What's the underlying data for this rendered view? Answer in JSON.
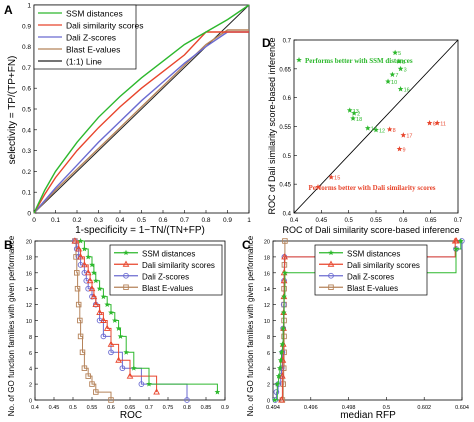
{
  "figure": {
    "panel_letters": [
      "A",
      "B",
      "C",
      "D"
    ]
  },
  "chart_data": [
    {
      "type": "line",
      "panel": "A",
      "xlabel": "1-specificity = 1−TN/(TN+FP)",
      "ylabel": "selectivity = TP/(TP+FN)",
      "xlim": [
        0,
        1
      ],
      "ylim": [
        0,
        1
      ],
      "xticks": [
        "0",
        "0.1",
        "0.2",
        "0.3",
        "0.4",
        "0.5",
        "0.6",
        "0.7",
        "0.8",
        "0.9",
        "1"
      ],
      "yticks": [
        "0",
        "0.1",
        "0.2",
        "0.3",
        "0.4",
        "0.5",
        "0.6",
        "0.7",
        "0.8",
        "0.9",
        "1"
      ],
      "grid": false,
      "legend_position": "top-left",
      "colors": {
        "ssm": "#2db82d",
        "dali_sim": "#e8452c",
        "dali_z": "#6b6bd1",
        "blast": "#b5835a",
        "diag": "#222222"
      },
      "series": [
        {
          "name": "SSM distances",
          "x": [
            0,
            0.05,
            0.1,
            0.2,
            0.3,
            0.4,
            0.5,
            0.6,
            0.7,
            0.8,
            0.9,
            1.0
          ],
          "y": [
            0,
            0.11,
            0.2,
            0.34,
            0.46,
            0.56,
            0.65,
            0.73,
            0.81,
            0.87,
            0.93,
            1.0
          ]
        },
        {
          "name": "Dali similarity scores",
          "x": [
            0,
            0.05,
            0.1,
            0.2,
            0.3,
            0.4,
            0.5,
            0.6,
            0.7,
            0.8,
            0.9,
            1.0
          ],
          "y": [
            0,
            0.09,
            0.17,
            0.3,
            0.41,
            0.51,
            0.6,
            0.68,
            0.76,
            0.87,
            0.87,
            0.87
          ]
        },
        {
          "name": "Dali Z-scores",
          "x": [
            0,
            0.1,
            0.2,
            0.3,
            0.4,
            0.5,
            0.6,
            0.7,
            0.8,
            0.9,
            1.0
          ],
          "y": [
            0,
            0.12,
            0.23,
            0.34,
            0.44,
            0.54,
            0.63,
            0.72,
            0.8,
            0.87,
            0.87
          ]
        },
        {
          "name": "Blast E-values",
          "x": [
            0,
            0.1,
            0.2,
            0.3,
            0.4,
            0.5,
            0.6,
            0.7,
            0.8,
            0.9,
            1.0
          ],
          "y": [
            0,
            0.11,
            0.21,
            0.31,
            0.41,
            0.51,
            0.61,
            0.71,
            0.81,
            0.88,
            0.88
          ]
        },
        {
          "name": "(1:1) Line",
          "x": [
            0,
            1
          ],
          "y": [
            0,
            1
          ]
        }
      ]
    },
    {
      "type": "line",
      "panel": "B",
      "xlabel": "ROC",
      "ylabel": "No. of GO function families with given performance",
      "xlim": [
        0.4,
        0.9
      ],
      "ylim": [
        0,
        20
      ],
      "xticks": [
        "0.4",
        "0.45",
        "0.5",
        "0.55",
        "0.6",
        "0.65",
        "0.7",
        "0.75",
        "0.8",
        "0.85",
        "0.9"
      ],
      "yticks": [
        "0",
        "2",
        "4",
        "6",
        "8",
        "10",
        "12",
        "14",
        "16",
        "18",
        "20"
      ],
      "legend_position": "top-right",
      "series": [
        {
          "name": "SSM distances",
          "marker": "star",
          "x": [
            0.52,
            0.53,
            0.54,
            0.55,
            0.555,
            0.56,
            0.57,
            0.58,
            0.59,
            0.6,
            0.61,
            0.62,
            0.625,
            0.64,
            0.66,
            0.7,
            0.88
          ],
          "y": [
            20,
            19,
            18,
            17,
            16,
            15,
            14,
            13,
            12,
            11,
            10,
            9,
            8,
            6,
            4,
            2,
            1
          ]
        },
        {
          "name": "Dali similarity scores",
          "marker": "triangle",
          "x": [
            0.505,
            0.515,
            0.52,
            0.53,
            0.54,
            0.545,
            0.55,
            0.555,
            0.56,
            0.57,
            0.58,
            0.59,
            0.6,
            0.62,
            0.65,
            0.72
          ],
          "y": [
            20,
            19,
            18,
            17,
            16,
            15,
            14,
            13,
            12,
            11,
            10,
            9,
            7,
            5,
            3,
            1
          ]
        },
        {
          "name": "Dali Z-scores",
          "marker": "circle",
          "x": [
            0.505,
            0.51,
            0.515,
            0.52,
            0.53,
            0.535,
            0.54,
            0.55,
            0.56,
            0.57,
            0.58,
            0.6,
            0.63,
            0.68,
            0.8
          ],
          "y": [
            20,
            19,
            18,
            17,
            16,
            15,
            14,
            13,
            12,
            10,
            8,
            6,
            4,
            2,
            0
          ]
        },
        {
          "name": "Blast E-values",
          "marker": "square",
          "x": [
            0.505,
            0.508,
            0.51,
            0.512,
            0.515,
            0.518,
            0.52,
            0.525,
            0.53,
            0.54,
            0.55,
            0.56,
            0.6
          ],
          "y": [
            20,
            18,
            16,
            14,
            12,
            10,
            8,
            6,
            4,
            3,
            2,
            1,
            0
          ]
        }
      ]
    },
    {
      "type": "line",
      "panel": "C",
      "xlabel": "median RFP",
      "ylabel": "No. of GO function families with given performance",
      "xlim": [
        0.4935,
        0.6045
      ],
      "ylim": [
        0,
        20
      ],
      "xticks": [
        "0.494",
        "0.496",
        "0.498",
        "0.5",
        "0.602",
        "0.604"
      ],
      "yticks": [
        "0",
        "2",
        "4",
        "6",
        "8",
        "10",
        "12",
        "14",
        "16",
        "18",
        "20"
      ],
      "legend_position": "top-left",
      "series": [
        {
          "name": "SSM distances",
          "marker": "star",
          "x": [
            0.4945,
            0.496,
            0.4968,
            0.4975,
            0.498,
            0.4985,
            0.499,
            0.4995,
            0.4998,
            0.5,
            0.5005,
            0.601,
            0.6038
          ],
          "y": [
            0,
            2,
            3,
            4,
            5,
            6,
            7,
            9,
            11,
            13,
            16,
            19,
            20
          ]
        },
        {
          "name": "Dali similarity scores",
          "marker": "triangle",
          "x": [
            0.4985,
            0.499,
            0.4993,
            0.4995,
            0.4997,
            0.4998,
            0.4999,
            0.5,
            0.5,
            0.5003,
            0.6005,
            0.6012
          ],
          "y": [
            0,
            3,
            5,
            7,
            9,
            11,
            13,
            15,
            16,
            18,
            20,
            20
          ]
        },
        {
          "name": "Dali Z-scores",
          "marker": "circle",
          "x": [
            0.4948,
            0.4955,
            0.4965,
            0.498,
            0.4985,
            0.499,
            0.4995,
            0.4998,
            0.5,
            0.5002,
            0.601,
            0.6044
          ],
          "y": [
            0,
            1,
            2,
            3,
            4,
            6,
            9,
            12,
            15,
            18,
            19,
            20
          ]
        },
        {
          "name": "Blast E-values",
          "marker": "square",
          "x": [
            0.499,
            0.4995,
            0.4998,
            0.5,
            0.5,
            0.5,
            0.5,
            0.5,
            0.5002,
            0.5005
          ],
          "y": [
            0,
            2,
            4,
            6,
            8,
            10,
            12,
            14,
            17,
            20
          ]
        }
      ]
    },
    {
      "type": "scatter",
      "panel": "D",
      "xlabel": "ROC of Dali similarity score-based inference",
      "ylabel": "ROC of Dali similarity score-based inference",
      "xlim": [
        0.4,
        0.7
      ],
      "ylim": [
        0.4,
        0.7
      ],
      "xticks": [
        "0.4",
        "0.45",
        "0.5",
        "0.55",
        "0.6",
        "0.65",
        "0.7"
      ],
      "yticks": [
        "0.4",
        "0.45",
        "0.5",
        "0.55",
        "0.6",
        "0.65",
        "0.7"
      ],
      "annotations": [
        "Performs better with SSM distances",
        "Performs better with Dali similarity scores"
      ],
      "series": [
        {
          "name": "Performs better with SSM distances",
          "color": "#2db82d",
          "points": [
            {
              "label": "5",
              "x": 0.585,
              "y": 0.678
            },
            {
              "label": "6",
              "x": 0.592,
              "y": 0.663
            },
            {
              "label": "3",
              "x": 0.595,
              "y": 0.65
            },
            {
              "label": "7",
              "x": 0.58,
              "y": 0.64
            },
            {
              "label": "10",
              "x": 0.572,
              "y": 0.628
            },
            {
              "label": "16",
              "x": 0.595,
              "y": 0.615
            },
            {
              "label": "13",
              "x": 0.502,
              "y": 0.578
            },
            {
              "label": "2",
              "x": 0.51,
              "y": 0.573
            },
            {
              "label": "18",
              "x": 0.508,
              "y": 0.564
            },
            {
              "label": "14",
              "x": 0.535,
              "y": 0.547
            },
            {
              "label": "12",
              "x": 0.55,
              "y": 0.544
            }
          ]
        },
        {
          "name": "Performs better with Dali similarity scores",
          "color": "#e8452c",
          "points": [
            {
              "label": "8",
              "x": 0.575,
              "y": 0.545
            },
            {
              "label": "6",
              "x": 0.648,
              "y": 0.556
            },
            {
              "label": "11",
              "x": 0.662,
              "y": 0.556
            },
            {
              "label": "17",
              "x": 0.6,
              "y": 0.535
            },
            {
              "label": "9",
              "x": 0.593,
              "y": 0.511
            },
            {
              "label": "15",
              "x": 0.468,
              "y": 0.462
            }
          ]
        }
      ]
    }
  ]
}
